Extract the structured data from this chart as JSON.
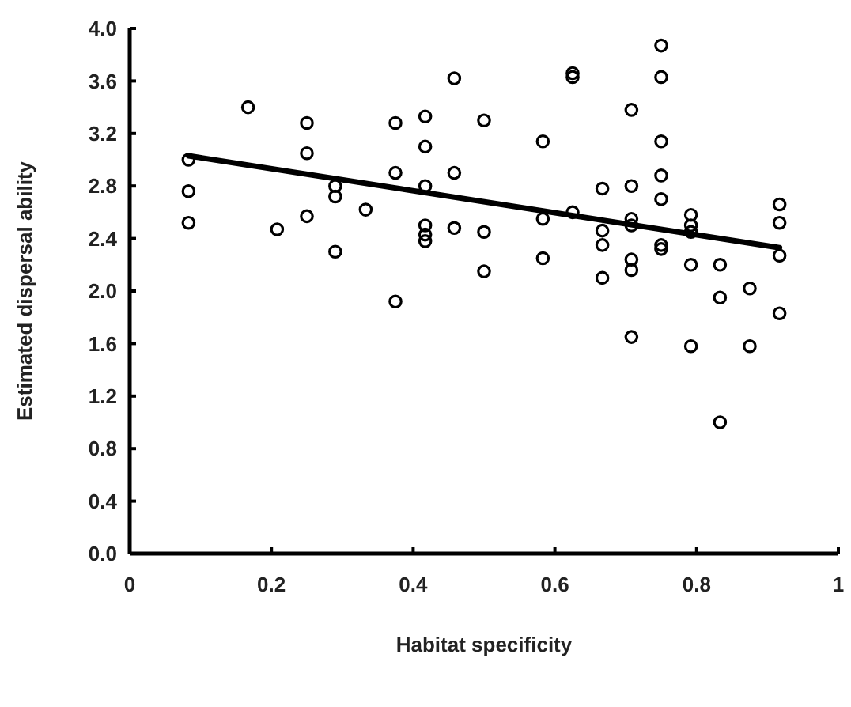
{
  "chart_data": {
    "type": "scatter",
    "xlabel": "Habitat specificity",
    "ylabel": "Estimated dispersal ability",
    "xlim": [
      0,
      1
    ],
    "ylim": [
      0,
      4
    ],
    "xticks": [
      0,
      0.2,
      0.4,
      0.6,
      0.8,
      1
    ],
    "yticks": [
      {
        "value": 0,
        "label": "0.0"
      },
      0.4,
      0.8,
      1.2,
      1.6,
      {
        "value": 2,
        "label": "2.0"
      },
      2.4,
      2.8,
      3.2,
      3.6,
      {
        "value": 4,
        "label": "4.0"
      }
    ],
    "grid": false,
    "marker": "circle",
    "series": [
      {
        "color": "#000000",
        "x": [
          0.083,
          0.083,
          0.083,
          0.167,
          0.208,
          0.25,
          0.25,
          0.25,
          0.29,
          0.29,
          0.29,
          0.333,
          0.375,
          0.375,
          0.375,
          0.417,
          0.417,
          0.417,
          0.417,
          0.417,
          0.417,
          0.458,
          0.458,
          0.458,
          0.5,
          0.5,
          0.5,
          0.583,
          0.583,
          0.583,
          0.625,
          0.625,
          0.625,
          0.667,
          0.667,
          0.667,
          0.667,
          0.708,
          0.708,
          0.708,
          0.708,
          0.708,
          0.708,
          0.708,
          0.75,
          0.75,
          0.75,
          0.75,
          0.75,
          0.75,
          0.75,
          0.792,
          0.792,
          0.792,
          0.792,
          0.792,
          0.833,
          0.833,
          0.833,
          0.875,
          0.875,
          0.917,
          0.917,
          0.917,
          0.917
        ],
        "values": [
          3.0,
          2.76,
          2.52,
          3.4,
          2.47,
          3.28,
          3.05,
          2.57,
          2.8,
          2.72,
          2.3,
          2.62,
          3.28,
          2.9,
          1.92,
          3.33,
          3.1,
          2.8,
          2.5,
          2.43,
          2.38,
          3.62,
          2.9,
          2.48,
          3.3,
          2.45,
          2.15,
          3.14,
          2.55,
          2.25,
          3.66,
          3.63,
          2.6,
          2.78,
          2.46,
          2.35,
          2.1,
          3.38,
          2.8,
          2.55,
          2.5,
          2.24,
          2.16,
          1.65,
          3.87,
          3.63,
          3.14,
          2.88,
          2.7,
          2.35,
          2.32,
          2.58,
          2.5,
          2.45,
          2.2,
          1.58,
          2.2,
          1.95,
          1.0,
          2.02,
          1.58,
          2.66,
          2.52,
          2.27,
          1.83
        ]
      },
      {
        "type": "line",
        "color": "#000000",
        "marker": "none",
        "line_style": "solid",
        "x": [
          0.083,
          0.917
        ],
        "values": [
          3.03,
          2.33
        ]
      }
    ]
  }
}
